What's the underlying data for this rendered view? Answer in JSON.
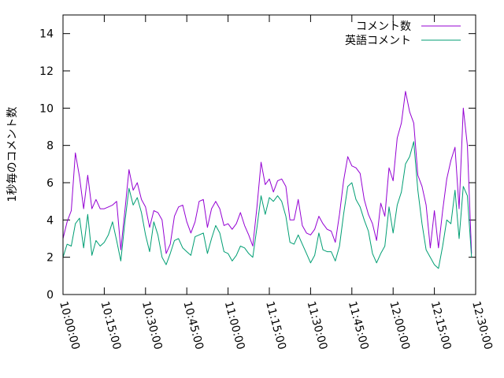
{
  "chart_data": {
    "type": "line",
    "title": "",
    "xlabel": "",
    "ylabel": "1秒毎のコメント数",
    "ylim": [
      0,
      15
    ],
    "yticks": [
      0,
      2,
      4,
      6,
      8,
      10,
      12,
      14
    ],
    "xticks": [
      "10:00:00",
      "10:15:00",
      "10:30:00",
      "10:45:00",
      "11:00:00",
      "11:15:00",
      "11:30:00",
      "11:45:00",
      "12:00:00",
      "12:15:00",
      "12:30:00"
    ],
    "xlim_minutes": [
      0,
      150
    ],
    "legend_position": "top-right",
    "grid": false,
    "series": [
      {
        "name": "コメント数",
        "color": "#9400d3",
        "points": [
          [
            0,
            3.0
          ],
          [
            1.5,
            3.9
          ],
          [
            3,
            4.5
          ],
          [
            4.5,
            7.6
          ],
          [
            6,
            6.3
          ],
          [
            7.5,
            4.6
          ],
          [
            9,
            6.4
          ],
          [
            10.5,
            4.6
          ],
          [
            12,
            5.1
          ],
          [
            13.5,
            4.6
          ],
          [
            15,
            4.6
          ],
          [
            16.5,
            4.7
          ],
          [
            18,
            4.8
          ],
          [
            19.5,
            5.0
          ],
          [
            21,
            2.4
          ],
          [
            22.5,
            4.5
          ],
          [
            24,
            6.7
          ],
          [
            25.5,
            5.6
          ],
          [
            27,
            6.0
          ],
          [
            28.5,
            5.1
          ],
          [
            30,
            4.7
          ],
          [
            31.5,
            3.6
          ],
          [
            33,
            4.5
          ],
          [
            34.5,
            4.4
          ],
          [
            36,
            4.0
          ],
          [
            37.5,
            2.2
          ],
          [
            39,
            2.7
          ],
          [
            40.5,
            4.2
          ],
          [
            42,
            4.7
          ],
          [
            43.5,
            4.8
          ],
          [
            45,
            3.9
          ],
          [
            46.5,
            3.3
          ],
          [
            48,
            3.9
          ],
          [
            49.5,
            5.0
          ],
          [
            51,
            5.1
          ],
          [
            52.5,
            3.6
          ],
          [
            54,
            4.6
          ],
          [
            55.5,
            5.0
          ],
          [
            57,
            4.6
          ],
          [
            58.5,
            3.7
          ],
          [
            60,
            3.8
          ],
          [
            61.5,
            3.5
          ],
          [
            63,
            3.8
          ],
          [
            64.5,
            4.4
          ],
          [
            66,
            3.7
          ],
          [
            67.5,
            3.2
          ],
          [
            69,
            2.6
          ],
          [
            70.5,
            4.7
          ],
          [
            72,
            7.1
          ],
          [
            73.5,
            5.9
          ],
          [
            75,
            6.2
          ],
          [
            76.5,
            5.5
          ],
          [
            78,
            6.1
          ],
          [
            79.5,
            6.2
          ],
          [
            81,
            5.8
          ],
          [
            82.5,
            4.0
          ],
          [
            84,
            4.0
          ],
          [
            85.5,
            5.1
          ],
          [
            87,
            3.7
          ],
          [
            88.5,
            3.3
          ],
          [
            90,
            3.2
          ],
          [
            91.5,
            3.5
          ],
          [
            93,
            4.2
          ],
          [
            94.5,
            3.8
          ],
          [
            96,
            3.5
          ],
          [
            97.5,
            3.4
          ],
          [
            99,
            2.8
          ],
          [
            100.5,
            4.3
          ],
          [
            102,
            6.1
          ],
          [
            103.5,
            7.4
          ],
          [
            105,
            6.9
          ],
          [
            106.5,
            6.8
          ],
          [
            108,
            6.5
          ],
          [
            109.5,
            5.1
          ],
          [
            111,
            4.3
          ],
          [
            112.5,
            3.8
          ],
          [
            114,
            2.9
          ],
          [
            115.5,
            4.9
          ],
          [
            117,
            4.2
          ],
          [
            118.5,
            6.8
          ],
          [
            120,
            6.1
          ],
          [
            121.5,
            8.4
          ],
          [
            123,
            9.2
          ],
          [
            124.5,
            10.9
          ],
          [
            126,
            9.8
          ],
          [
            127.5,
            9.2
          ],
          [
            129,
            6.4
          ],
          [
            130.5,
            5.8
          ],
          [
            132,
            4.8
          ],
          [
            133.5,
            2.5
          ],
          [
            135,
            4.5
          ],
          [
            136.5,
            2.5
          ],
          [
            138,
            4.5
          ],
          [
            139.5,
            6.2
          ],
          [
            141,
            7.2
          ],
          [
            142.5,
            7.9
          ],
          [
            144,
            4.6
          ],
          [
            145.5,
            10.0
          ],
          [
            147,
            8.0
          ],
          [
            148.5,
            2.2
          ]
        ]
      },
      {
        "name": "英語コメント",
        "color": "#009e73",
        "points": [
          [
            0,
            2.0
          ],
          [
            1.5,
            2.7
          ],
          [
            3,
            2.6
          ],
          [
            4.5,
            3.8
          ],
          [
            6,
            4.1
          ],
          [
            7.5,
            2.5
          ],
          [
            9,
            4.3
          ],
          [
            10.5,
            2.1
          ],
          [
            12,
            2.9
          ],
          [
            13.5,
            2.6
          ],
          [
            15,
            2.8
          ],
          [
            16.5,
            3.2
          ],
          [
            18,
            3.9
          ],
          [
            19.5,
            2.9
          ],
          [
            21,
            1.8
          ],
          [
            22.5,
            3.9
          ],
          [
            24,
            5.7
          ],
          [
            25.5,
            4.8
          ],
          [
            27,
            5.2
          ],
          [
            28.5,
            4.4
          ],
          [
            30,
            3.2
          ],
          [
            31.5,
            2.3
          ],
          [
            33,
            3.9
          ],
          [
            34.5,
            3.2
          ],
          [
            36,
            2.0
          ],
          [
            37.5,
            1.6
          ],
          [
            39,
            2.2
          ],
          [
            40.5,
            2.9
          ],
          [
            42,
            3.0
          ],
          [
            43.5,
            2.5
          ],
          [
            45,
            2.3
          ],
          [
            46.5,
            2.1
          ],
          [
            48,
            3.1
          ],
          [
            49.5,
            3.2
          ],
          [
            51,
            3.3
          ],
          [
            52.5,
            2.2
          ],
          [
            54,
            3.0
          ],
          [
            55.5,
            3.7
          ],
          [
            57,
            3.3
          ],
          [
            58.5,
            2.3
          ],
          [
            60,
            2.2
          ],
          [
            61.5,
            1.8
          ],
          [
            63,
            2.1
          ],
          [
            64.5,
            2.6
          ],
          [
            66,
            2.5
          ],
          [
            67.5,
            2.2
          ],
          [
            69,
            2.0
          ],
          [
            70.5,
            3.6
          ],
          [
            72,
            5.3
          ],
          [
            73.5,
            4.3
          ],
          [
            75,
            5.2
          ],
          [
            76.5,
            5.0
          ],
          [
            78,
            5.3
          ],
          [
            79.5,
            5.0
          ],
          [
            81,
            4.2
          ],
          [
            82.5,
            2.8
          ],
          [
            84,
            2.7
          ],
          [
            85.5,
            3.2
          ],
          [
            87,
            2.7
          ],
          [
            88.5,
            2.2
          ],
          [
            90,
            1.7
          ],
          [
            91.5,
            2.1
          ],
          [
            93,
            3.3
          ],
          [
            94.5,
            2.4
          ],
          [
            96,
            2.3
          ],
          [
            97.5,
            2.3
          ],
          [
            99,
            1.8
          ],
          [
            100.5,
            2.6
          ],
          [
            102,
            4.3
          ],
          [
            103.5,
            5.8
          ],
          [
            105,
            6.0
          ],
          [
            106.5,
            5.1
          ],
          [
            108,
            4.7
          ],
          [
            109.5,
            4.0
          ],
          [
            111,
            3.4
          ],
          [
            112.5,
            2.2
          ],
          [
            114,
            1.7
          ],
          [
            115.5,
            2.2
          ],
          [
            117,
            2.6
          ],
          [
            118.5,
            4.7
          ],
          [
            120,
            3.3
          ],
          [
            121.5,
            4.8
          ],
          [
            123,
            5.5
          ],
          [
            124.5,
            7.0
          ],
          [
            126,
            7.4
          ],
          [
            127.5,
            8.2
          ],
          [
            129,
            5.6
          ],
          [
            130.5,
            3.8
          ],
          [
            132,
            2.4
          ],
          [
            133.5,
            2.0
          ],
          [
            135,
            1.6
          ],
          [
            136.5,
            1.4
          ],
          [
            138,
            2.6
          ],
          [
            139.5,
            4.0
          ],
          [
            141,
            3.8
          ],
          [
            142.5,
            5.6
          ],
          [
            144,
            3.0
          ],
          [
            145.5,
            5.8
          ],
          [
            147,
            5.3
          ],
          [
            148.5,
            2.0
          ]
        ]
      }
    ]
  }
}
